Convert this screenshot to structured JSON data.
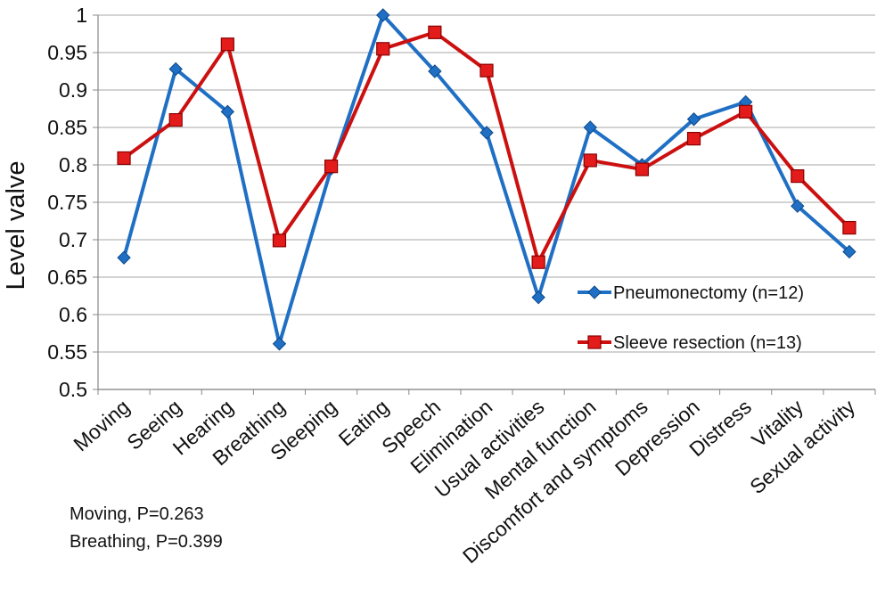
{
  "chart_data": {
    "type": "line",
    "ylabel": "Level valve",
    "ylim": [
      0.5,
      1
    ],
    "y_ticks": [
      "0.5",
      "0.55",
      "0.6",
      "0.65",
      "0.7",
      "0.75",
      "0.8",
      "0.85",
      "0.9",
      "0.95",
      "1"
    ],
    "grid": true,
    "legend_position": "right",
    "categories": [
      "Moving",
      "Seeing",
      "Hearing",
      "Breathing",
      "Sleeping",
      "Eating",
      "Speech",
      "Elimination",
      "Usual activities",
      "Mental function",
      "Discomfort and symptoms",
      "Depression",
      "Distress",
      "Vitality",
      "Sexual activity"
    ],
    "series": [
      {
        "name": "Pneumonectomy (n=12)",
        "color": "#1f6fc4",
        "marker": "diamond",
        "values": [
          0.676,
          0.928,
          0.871,
          0.561,
          0.795,
          1.0,
          0.925,
          0.843,
          0.623,
          0.85,
          0.8,
          0.861,
          0.884,
          0.745,
          0.684
        ]
      },
      {
        "name": "Sleeve resection (n=13)",
        "color": "#cc1010",
        "marker": "square",
        "values": [
          0.809,
          0.86,
          0.961,
          0.699,
          0.798,
          0.955,
          0.977,
          0.926,
          0.67,
          0.806,
          0.794,
          0.835,
          0.871,
          0.785,
          0.716
        ]
      }
    ]
  },
  "notes": [
    "Moving, P=0.263",
    "Breathing, P=0.399"
  ]
}
